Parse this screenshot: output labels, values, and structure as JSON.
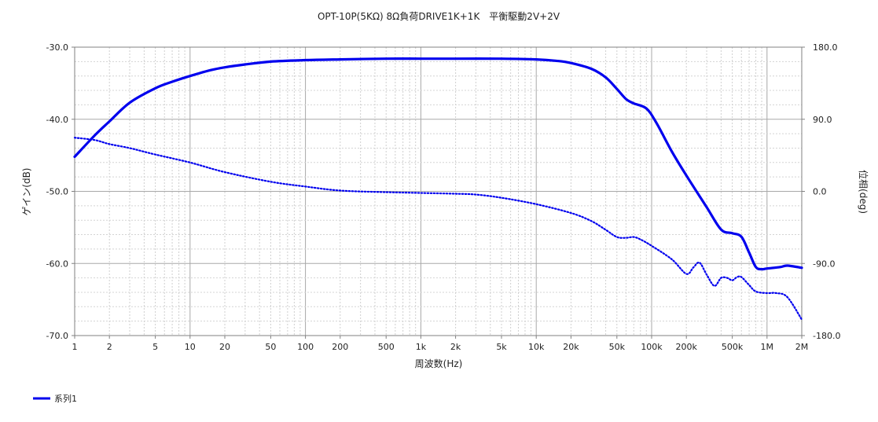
{
  "chart_data": {
    "type": "line",
    "title": "OPT-10P(5KΩ) 8Ω負荷DRIVE1K+1K　平衡駆動2V+2V",
    "xlabel": "周波数(Hz)",
    "ylabel": "ゲイン(dB)",
    "y2label": "位相(deg)",
    "xscale": "log",
    "xlim": [
      1,
      2000000
    ],
    "ylim": [
      -70,
      -30
    ],
    "y2lim": [
      -180,
      180
    ],
    "grid": true,
    "legend_position": "bottom-left",
    "xticks": [
      {
        "v": 1,
        "label": "1"
      },
      {
        "v": 2,
        "label": "2"
      },
      {
        "v": 5,
        "label": "5"
      },
      {
        "v": 10,
        "label": "10"
      },
      {
        "v": 20,
        "label": "20"
      },
      {
        "v": 50,
        "label": "50"
      },
      {
        "v": 100,
        "label": "100"
      },
      {
        "v": 200,
        "label": "200"
      },
      {
        "v": 500,
        "label": "500"
      },
      {
        "v": 1000,
        "label": "1k"
      },
      {
        "v": 2000,
        "label": "2k"
      },
      {
        "v": 5000,
        "label": "5k"
      },
      {
        "v": 10000,
        "label": "10k"
      },
      {
        "v": 20000,
        "label": "20k"
      },
      {
        "v": 50000,
        "label": "50k"
      },
      {
        "v": 100000,
        "label": "100k"
      },
      {
        "v": 200000,
        "label": "200k"
      },
      {
        "v": 500000,
        "label": "500k"
      },
      {
        "v": 1000000,
        "label": "1M"
      },
      {
        "v": 2000000,
        "label": "2M"
      }
    ],
    "yticks": [
      {
        "v": -30,
        "label": "-30.0"
      },
      {
        "v": -40,
        "label": "-40.0"
      },
      {
        "v": -50,
        "label": "-50.0"
      },
      {
        "v": -60,
        "label": "-60.0"
      },
      {
        "v": -70,
        "label": "-70.0"
      }
    ],
    "y2ticks": [
      {
        "v": 180,
        "label": "180.0"
      },
      {
        "v": 90,
        "label": "90.0"
      },
      {
        "v": 0,
        "label": "0.0"
      },
      {
        "v": -90,
        "label": "-90.0"
      },
      {
        "v": -180,
        "label": "-180.0"
      }
    ],
    "series": [
      {
        "name": "系列1",
        "axis": "left",
        "style": "solid",
        "color": "#0000ee",
        "x": [
          1,
          1.5,
          2,
          3,
          5,
          7,
          10,
          15,
          20,
          30,
          50,
          100,
          200,
          500,
          1000,
          2000,
          5000,
          10000,
          15000,
          20000,
          30000,
          40000,
          50000,
          60000,
          70000,
          90000,
          110000,
          150000,
          200000,
          300000,
          400000,
          500000,
          600000,
          700000,
          800000,
          900000,
          1000000,
          1300000,
          1500000,
          2000000
        ],
        "y": [
          -45.2,
          -42.2,
          -40.3,
          -37.7,
          -35.7,
          -34.8,
          -34.0,
          -33.2,
          -32.8,
          -32.4,
          -32.0,
          -31.8,
          -31.7,
          -31.6,
          -31.6,
          -31.6,
          -31.6,
          -31.7,
          -31.9,
          -32.2,
          -33.0,
          -34.2,
          -35.8,
          -37.2,
          -37.8,
          -38.5,
          -40.5,
          -44.5,
          -47.8,
          -52.2,
          -55.3,
          -55.8,
          -56.3,
          -58.5,
          -60.5,
          -60.8,
          -60.7,
          -60.5,
          -60.3,
          -60.6
        ]
      },
      {
        "name": "",
        "axis": "right",
        "style": "dotted",
        "color": "#0000ee",
        "x": [
          1,
          1.5,
          2,
          3,
          5,
          10,
          20,
          50,
          100,
          200,
          500,
          1000,
          2000,
          3000,
          5000,
          10000,
          20000,
          30000,
          40000,
          50000,
          60000,
          70000,
          80000,
          100000,
          150000,
          200000,
          230000,
          260000,
          300000,
          350000,
          400000,
          450000,
          500000,
          550000,
          600000,
          700000,
          800000,
          1000000,
          1200000,
          1500000,
          2000000
        ],
        "y": [
          67,
          64,
          59,
          54,
          46,
          36,
          24,
          12,
          6,
          1,
          -1,
          -2,
          -3,
          -4,
          -8,
          -16,
          -27,
          -37,
          -48,
          -57,
          -58,
          -57,
          -60,
          -68,
          -85,
          -103,
          -95,
          -89,
          -104,
          -118,
          -108,
          -108,
          -111,
          -107,
          -107,
          -117,
          -125,
          -127,
          -127,
          -132,
          -160
        ]
      }
    ],
    "legend": [
      {
        "label": "系列1",
        "color": "#0000ee"
      }
    ]
  }
}
